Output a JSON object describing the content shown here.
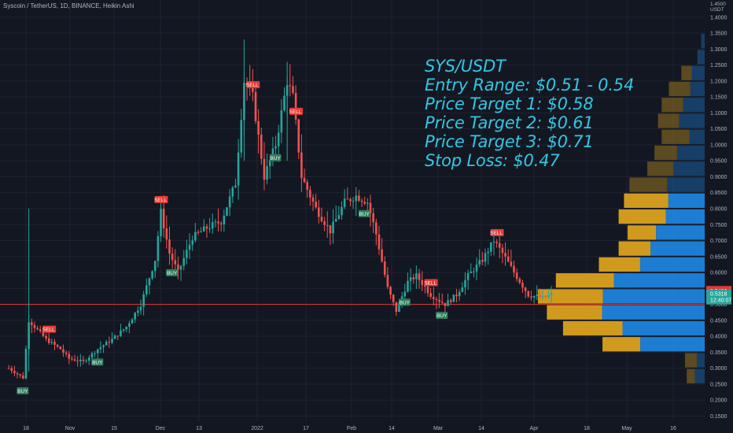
{
  "header": {
    "symbol_line": "Syscoin / TetherUS, 1D, BINANCE, Heikin Ashi"
  },
  "overlay": {
    "title": "SYS/USDT",
    "entry": "Entry Range: $0.51 - 0.54",
    "target1": "Price Target 1: $0.58",
    "target2": "Price Target 2: $0.61",
    "target3": "Price Target 3: $0.71",
    "stop": "Stop Loss: $0.47"
  },
  "colors": {
    "background": "#131722",
    "bull": "#26a69a",
    "bear": "#ef5350",
    "hline": "#e53935",
    "vp_up": "#1e88e5",
    "vp_down": "#e5a91e",
    "text_overlay": "#34c6e3",
    "axis_text": "#b2b5be"
  },
  "axis": {
    "currency": "USDT",
    "top_label": "1.4500",
    "y_ticks": [
      "1.4000",
      "1.3500",
      "1.3000",
      "1.2500",
      "1.2000",
      "1.1500",
      "1.1000",
      "1.0500",
      "1.0000",
      "0.9500",
      "0.9000",
      "0.8500",
      "0.8000",
      "0.7500",
      "0.7000",
      "0.6500",
      "0.6000",
      "0.5500",
      "0.5000",
      "0.4500",
      "0.4000",
      "0.3500",
      "0.3000",
      "0.2500",
      "0.2000",
      "0.1500"
    ],
    "x_ticks": [
      "18",
      "Nov",
      "15",
      "Dec",
      "13",
      "2022",
      "17",
      "Feb",
      "14",
      "Mar",
      "14",
      "Apr",
      "18",
      "May",
      "16"
    ],
    "price_badge": "0.5428",
    "current_price": "0.5318",
    "countdown": "12:40:07"
  },
  "signals": [
    "BUY",
    "SELL",
    "BUY",
    "SELL",
    "BUY",
    "SELL",
    "BUY",
    "SELL",
    "BUY",
    "BUY",
    "SELL",
    "BUY",
    "SELL"
  ],
  "chart_data": {
    "type": "candlestick",
    "chart_style": "Heikin Ashi",
    "timeframe": "1D",
    "exchange": "BINANCE",
    "symbol": "SYS/USDT",
    "ylim": [
      0.15,
      1.45
    ],
    "x_range": [
      "Oct 2021",
      "May 2022"
    ],
    "horizontal_line": 0.5,
    "last_price": 0.5318,
    "price_badge": 0.5428,
    "path": [
      {
        "t": "2021-10-12",
        "p": 0.3
      },
      {
        "t": "2021-10-17",
        "p": 0.27
      },
      {
        "t": "2021-10-19",
        "p": 0.45
      },
      {
        "t": "2021-10-25",
        "p": 0.39
      },
      {
        "t": "2021-10-30",
        "p": 0.36
      },
      {
        "t": "2021-11-02",
        "p": 0.33
      },
      {
        "t": "2021-11-07",
        "p": 0.32
      },
      {
        "t": "2021-11-12",
        "p": 0.36
      },
      {
        "t": "2021-11-17",
        "p": 0.39
      },
      {
        "t": "2021-11-22",
        "p": 0.43
      },
      {
        "t": "2021-11-27",
        "p": 0.5
      },
      {
        "t": "2021-12-02",
        "p": 0.64
      },
      {
        "t": "2021-12-04",
        "p": 0.79
      },
      {
        "t": "2021-12-07",
        "p": 0.66
      },
      {
        "t": "2021-12-10",
        "p": 0.6
      },
      {
        "t": "2021-12-15",
        "p": 0.71
      },
      {
        "t": "2021-12-20",
        "p": 0.74
      },
      {
        "t": "2021-12-25",
        "p": 0.76
      },
      {
        "t": "2021-12-30",
        "p": 0.88
      },
      {
        "t": "2022-01-02",
        "p": 1.2
      },
      {
        "t": "2022-01-05",
        "p": 1.15
      },
      {
        "t": "2022-01-09",
        "p": 0.9
      },
      {
        "t": "2022-01-13",
        "p": 1.0
      },
      {
        "t": "2022-01-17",
        "p": 1.2
      },
      {
        "t": "2022-01-19",
        "p": 1.15
      },
      {
        "t": "2022-01-22",
        "p": 0.9
      },
      {
        "t": "2022-01-27",
        "p": 0.8
      },
      {
        "t": "2022-02-01",
        "p": 0.73
      },
      {
        "t": "2022-02-06",
        "p": 0.82
      },
      {
        "t": "2022-02-10",
        "p": 0.84
      },
      {
        "t": "2022-02-14",
        "p": 0.82
      },
      {
        "t": "2022-02-17",
        "p": 0.72
      },
      {
        "t": "2022-02-21",
        "p": 0.55
      },
      {
        "t": "2022-02-24",
        "p": 0.48
      },
      {
        "t": "2022-02-28",
        "p": 0.57
      },
      {
        "t": "2022-03-03",
        "p": 0.59
      },
      {
        "t": "2022-03-08",
        "p": 0.53
      },
      {
        "t": "2022-03-13",
        "p": 0.5
      },
      {
        "t": "2022-03-17",
        "p": 0.53
      },
      {
        "t": "2022-03-21",
        "p": 0.59
      },
      {
        "t": "2022-03-26",
        "p": 0.64
      },
      {
        "t": "2022-03-30",
        "p": 0.7
      },
      {
        "t": "2022-04-02",
        "p": 0.66
      },
      {
        "t": "2022-04-06",
        "p": 0.6
      },
      {
        "t": "2022-04-11",
        "p": 0.53
      },
      {
        "t": "2022-04-16",
        "p": 0.52
      },
      {
        "t": "2022-04-19",
        "p": 0.53
      }
    ],
    "signal_dates": [
      "2021-10-17",
      "2021-10-26",
      "2021-11-12",
      "2021-12-04",
      "2021-12-08",
      "2022-01-05",
      "2022-01-13",
      "2022-01-20",
      "2022-02-13",
      "2022-02-27",
      "2022-03-08",
      "2022-03-12",
      "2022-03-31"
    ],
    "volume_profile": [
      {
        "price": 1.325,
        "up": 1.0,
        "down": 0.0
      },
      {
        "price": 1.275,
        "up": 0.95,
        "down": 0.05
      },
      {
        "price": 1.225,
        "up": 0.55,
        "down": 0.45
      },
      {
        "price": 1.175,
        "up": 0.4,
        "down": 0.6
      },
      {
        "price": 1.125,
        "up": 0.5,
        "down": 0.5
      },
      {
        "price": 1.075,
        "up": 0.55,
        "down": 0.45
      },
      {
        "price": 1.025,
        "up": 0.35,
        "down": 0.65
      },
      {
        "price": 0.975,
        "up": 0.55,
        "down": 0.45
      },
      {
        "price": 0.925,
        "up": 0.55,
        "down": 0.45
      },
      {
        "price": 0.875,
        "up": 0.5,
        "down": 0.5
      },
      {
        "price": 0.825,
        "up": 0.45,
        "down": 0.55
      },
      {
        "price": 0.775,
        "up": 0.45,
        "down": 0.55
      },
      {
        "price": 0.725,
        "up": 0.63,
        "down": 0.37
      },
      {
        "price": 0.675,
        "up": 0.63,
        "down": 0.37
      },
      {
        "price": 0.625,
        "up": 0.61,
        "down": 0.39
      },
      {
        "price": 0.575,
        "up": 0.61,
        "down": 0.39
      },
      {
        "price": 0.525,
        "up": 0.61,
        "down": 0.39
      },
      {
        "price": 0.475,
        "up": 0.65,
        "down": 0.35
      },
      {
        "price": 0.425,
        "up": 0.58,
        "down": 0.42
      },
      {
        "price": 0.375,
        "up": 0.63,
        "down": 0.37
      },
      {
        "price": 0.325,
        "up": 0.4,
        "down": 0.6
      },
      {
        "price": 0.275,
        "up": 0.55,
        "down": 0.45
      }
    ],
    "volume_profile_totals": [
      0.02,
      0.04,
      0.13,
      0.2,
      0.24,
      0.26,
      0.24,
      0.28,
      0.32,
      0.42,
      0.45,
      0.48,
      0.43,
      0.48,
      0.59,
      0.83,
      0.93,
      0.88,
      0.79,
      0.57,
      0.11,
      0.1
    ]
  }
}
